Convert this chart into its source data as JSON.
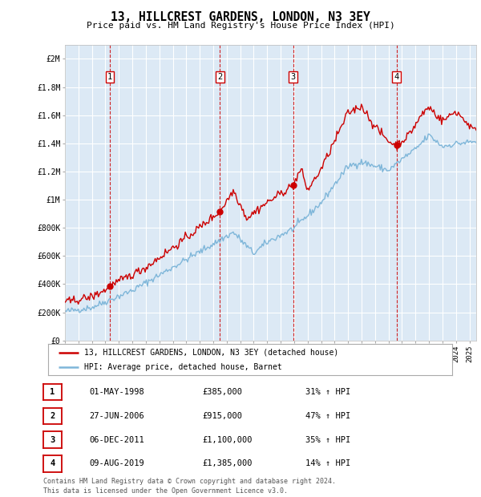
{
  "title": "13, HILLCREST GARDENS, LONDON, N3 3EY",
  "subtitle": "Price paid vs. HM Land Registry's House Price Index (HPI)",
  "ylabel_ticks": [
    "£0",
    "£200K",
    "£400K",
    "£600K",
    "£800K",
    "£1M",
    "£1.2M",
    "£1.4M",
    "£1.6M",
    "£1.8M",
    "£2M"
  ],
  "ytick_values": [
    0,
    200000,
    400000,
    600000,
    800000,
    1000000,
    1200000,
    1400000,
    1600000,
    1800000,
    2000000
  ],
  "ylim": [
    0,
    2100000
  ],
  "background_color": "#dce9f5",
  "red_color": "#cc0000",
  "blue_color": "#7eb6d9",
  "sale_points": [
    {
      "date_x": 1998.33,
      "price": 385000,
      "label": "1"
    },
    {
      "date_x": 2006.49,
      "price": 915000,
      "label": "2"
    },
    {
      "date_x": 2011.92,
      "price": 1100000,
      "label": "3"
    },
    {
      "date_x": 2019.59,
      "price": 1385000,
      "label": "4"
    }
  ],
  "legend_entries": [
    "13, HILLCREST GARDENS, LONDON, N3 3EY (detached house)",
    "HPI: Average price, detached house, Barnet"
  ],
  "table_rows": [
    {
      "num": "1",
      "date": "01-MAY-1998",
      "price": "£385,000",
      "hpi": "31% ↑ HPI"
    },
    {
      "num": "2",
      "date": "27-JUN-2006",
      "price": "£915,000",
      "hpi": "47% ↑ HPI"
    },
    {
      "num": "3",
      "date": "06-DEC-2011",
      "price": "£1,100,000",
      "hpi": "35% ↑ HPI"
    },
    {
      "num": "4",
      "date": "09-AUG-2019",
      "price": "£1,385,000",
      "hpi": "14% ↑ HPI"
    }
  ],
  "footer": "Contains HM Land Registry data © Crown copyright and database right 2024.\nThis data is licensed under the Open Government Licence v3.0.",
  "xmin": 1995.0,
  "xmax": 2025.5
}
